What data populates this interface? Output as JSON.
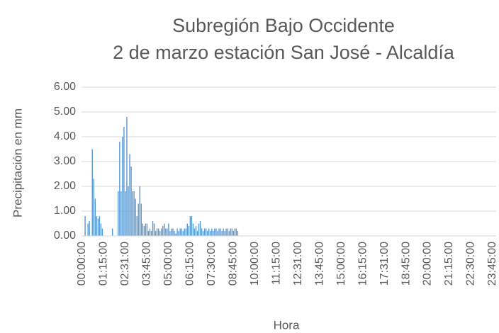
{
  "chart_data": {
    "type": "bar",
    "title": [
      "Subregión Bajo Occidente",
      "2 de marzo estación San José - Alcaldía"
    ],
    "y_label": "Precipitación en mm",
    "x_label": "Hora",
    "color": "#5b9bd5",
    "grid": true,
    "ylim": [
      0,
      6
    ],
    "yticks": [
      {
        "value": 0,
        "label": "0.00"
      },
      {
        "value": 1,
        "label": "1.00"
      },
      {
        "value": 2,
        "label": "2.00"
      },
      {
        "value": 3,
        "label": "3.00"
      },
      {
        "value": 4,
        "label": "4.00"
      },
      {
        "value": 5,
        "label": "5.00"
      },
      {
        "value": 6,
        "label": "6.00"
      }
    ],
    "categories": [
      "00:00:00",
      null,
      null,
      null,
      null,
      null,
      null,
      null,
      null,
      null,
      null,
      null,
      null,
      null,
      null,
      "01:15:00",
      null,
      null,
      null,
      null,
      null,
      null,
      null,
      null,
      null,
      null,
      null,
      null,
      null,
      null,
      "02:31:00",
      null,
      null,
      null,
      null,
      null,
      null,
      null,
      null,
      null,
      null,
      null,
      null,
      null,
      null,
      "03:45:00",
      null,
      null,
      null,
      null,
      null,
      null,
      null,
      null,
      null,
      null,
      null,
      null,
      null,
      null,
      "05:00:00",
      null,
      null,
      null,
      null,
      null,
      null,
      null,
      null,
      null,
      null,
      null,
      null,
      null,
      null,
      "06:15:00",
      null,
      null,
      null,
      null,
      null,
      null,
      null,
      null,
      null,
      null,
      null,
      null,
      null,
      null,
      "07:30:00",
      null,
      null,
      null,
      null,
      null,
      null,
      null,
      null,
      null,
      null,
      null,
      null,
      null,
      null,
      "08:45:00",
      null,
      null,
      null,
      null,
      null,
      null,
      null,
      null,
      null,
      null,
      null,
      null,
      null,
      null,
      "10:00:00",
      null,
      null,
      null,
      null,
      null,
      null,
      null,
      null,
      null,
      null,
      null,
      null,
      null,
      null,
      "11:15:00",
      null,
      null,
      null,
      null,
      null,
      null,
      null,
      null,
      null,
      null,
      null,
      null,
      null,
      null,
      "12:31:00",
      null,
      null,
      null,
      null,
      null,
      null,
      null,
      null,
      null,
      null,
      null,
      null,
      null,
      null,
      "13:45:00",
      null,
      null,
      null,
      null,
      null,
      null,
      null,
      null,
      null,
      null,
      null,
      null,
      null,
      null,
      "15:00:00",
      null,
      null,
      null,
      null,
      null,
      null,
      null,
      null,
      null,
      null,
      null,
      null,
      null,
      null,
      "16:15:00",
      null,
      null,
      null,
      null,
      null,
      null,
      null,
      null,
      null,
      null,
      null,
      null,
      null,
      null,
      "17:31:00",
      null,
      null,
      null,
      null,
      null,
      null,
      null,
      null,
      null,
      null,
      null,
      null,
      null,
      null,
      "18:45:00",
      null,
      null,
      null,
      null,
      null,
      null,
      null,
      null,
      null,
      null,
      null,
      null,
      null,
      null,
      "20:00:00",
      null,
      null,
      null,
      null,
      null,
      null,
      null,
      null,
      null,
      null,
      null,
      null,
      null,
      null,
      "21:15:00",
      null,
      null,
      null,
      null,
      null,
      null,
      null,
      null,
      null,
      null,
      null,
      null,
      null,
      null,
      "22:30:00",
      null,
      null,
      null,
      null,
      null,
      null,
      null,
      null,
      null,
      null,
      null,
      null,
      null,
      null,
      "23:45:00",
      null,
      null
    ],
    "values": [
      0,
      0,
      0.8,
      0,
      0.5,
      0.6,
      0,
      3.5,
      2.3,
      1.5,
      0.8,
      0.7,
      0.8,
      0.5,
      0.3,
      0,
      0,
      0,
      0,
      0,
      0,
      0.3,
      0,
      0,
      0,
      1.8,
      3.8,
      1.8,
      4.0,
      4.4,
      1.8,
      4.8,
      2.0,
      3.3,
      2.8,
      1.8,
      1.8,
      1.5,
      0.8,
      1.3,
      2.0,
      1.3,
      0.5,
      0.4,
      0.5,
      0.5,
      0.2,
      0.3,
      0.2,
      0.6,
      0.5,
      0.2,
      0.3,
      0.3,
      0.2,
      0.3,
      0.4,
      0.5,
      0.3,
      0.3,
      0.5,
      0.2,
      0.3,
      0.3,
      0.2,
      0.1,
      0.3,
      0.2,
      0.3,
      0.3,
      0.2,
      0.3,
      0.3,
      0.5,
      0.4,
      0.8,
      0.8,
      0.5,
      0.3,
      0.4,
      0.2,
      0.5,
      0.6,
      0.3,
      0.2,
      0.3,
      0.3,
      0.2,
      0.3,
      0.2,
      0.3,
      0.2,
      0.3,
      0.3,
      0.2,
      0.3,
      0.3,
      0.2,
      0.3,
      0.2,
      0.3,
      0.3,
      0.2,
      0.3,
      0.3,
      0.2,
      0.3,
      0.3,
      0.2,
      0,
      0,
      0,
      0,
      0,
      0,
      0,
      0,
      0,
      0,
      0,
      0,
      0,
      0,
      0,
      0,
      0,
      0,
      0,
      0,
      0,
      0,
      0,
      0,
      0,
      0,
      0,
      0,
      0,
      0,
      0,
      0,
      0,
      0,
      0,
      0,
      0,
      0,
      0,
      0,
      0,
      0,
      0,
      0,
      0,
      0,
      0,
      0,
      0,
      0,
      0,
      0,
      0,
      0,
      0,
      0,
      0,
      0,
      0,
      0,
      0,
      0,
      0,
      0,
      0,
      0,
      0,
      0,
      0,
      0,
      0,
      0,
      0,
      0,
      0,
      0,
      0,
      0,
      0,
      0,
      0,
      0,
      0,
      0,
      0,
      0,
      0,
      0,
      0,
      0,
      0,
      0,
      0,
      0,
      0,
      0,
      0,
      0,
      0,
      0,
      0,
      0,
      0,
      0,
      0,
      0,
      0,
      0,
      0,
      0,
      0,
      0,
      0,
      0,
      0,
      0,
      0,
      0,
      0,
      0,
      0,
      0,
      0,
      0,
      0,
      0,
      0,
      0,
      0,
      0,
      0,
      0,
      0,
      0,
      0,
      0,
      0,
      0,
      0,
      0,
      0,
      0,
      0,
      0,
      0,
      0,
      0,
      0,
      0,
      0,
      0,
      0,
      0,
      0,
      0,
      0,
      0,
      0,
      0,
      0,
      0,
      0,
      0,
      0,
      0,
      0,
      0,
      0,
      0,
      0,
      0,
      0,
      0,
      0,
      0,
      0,
      0,
      0,
      0
    ]
  }
}
